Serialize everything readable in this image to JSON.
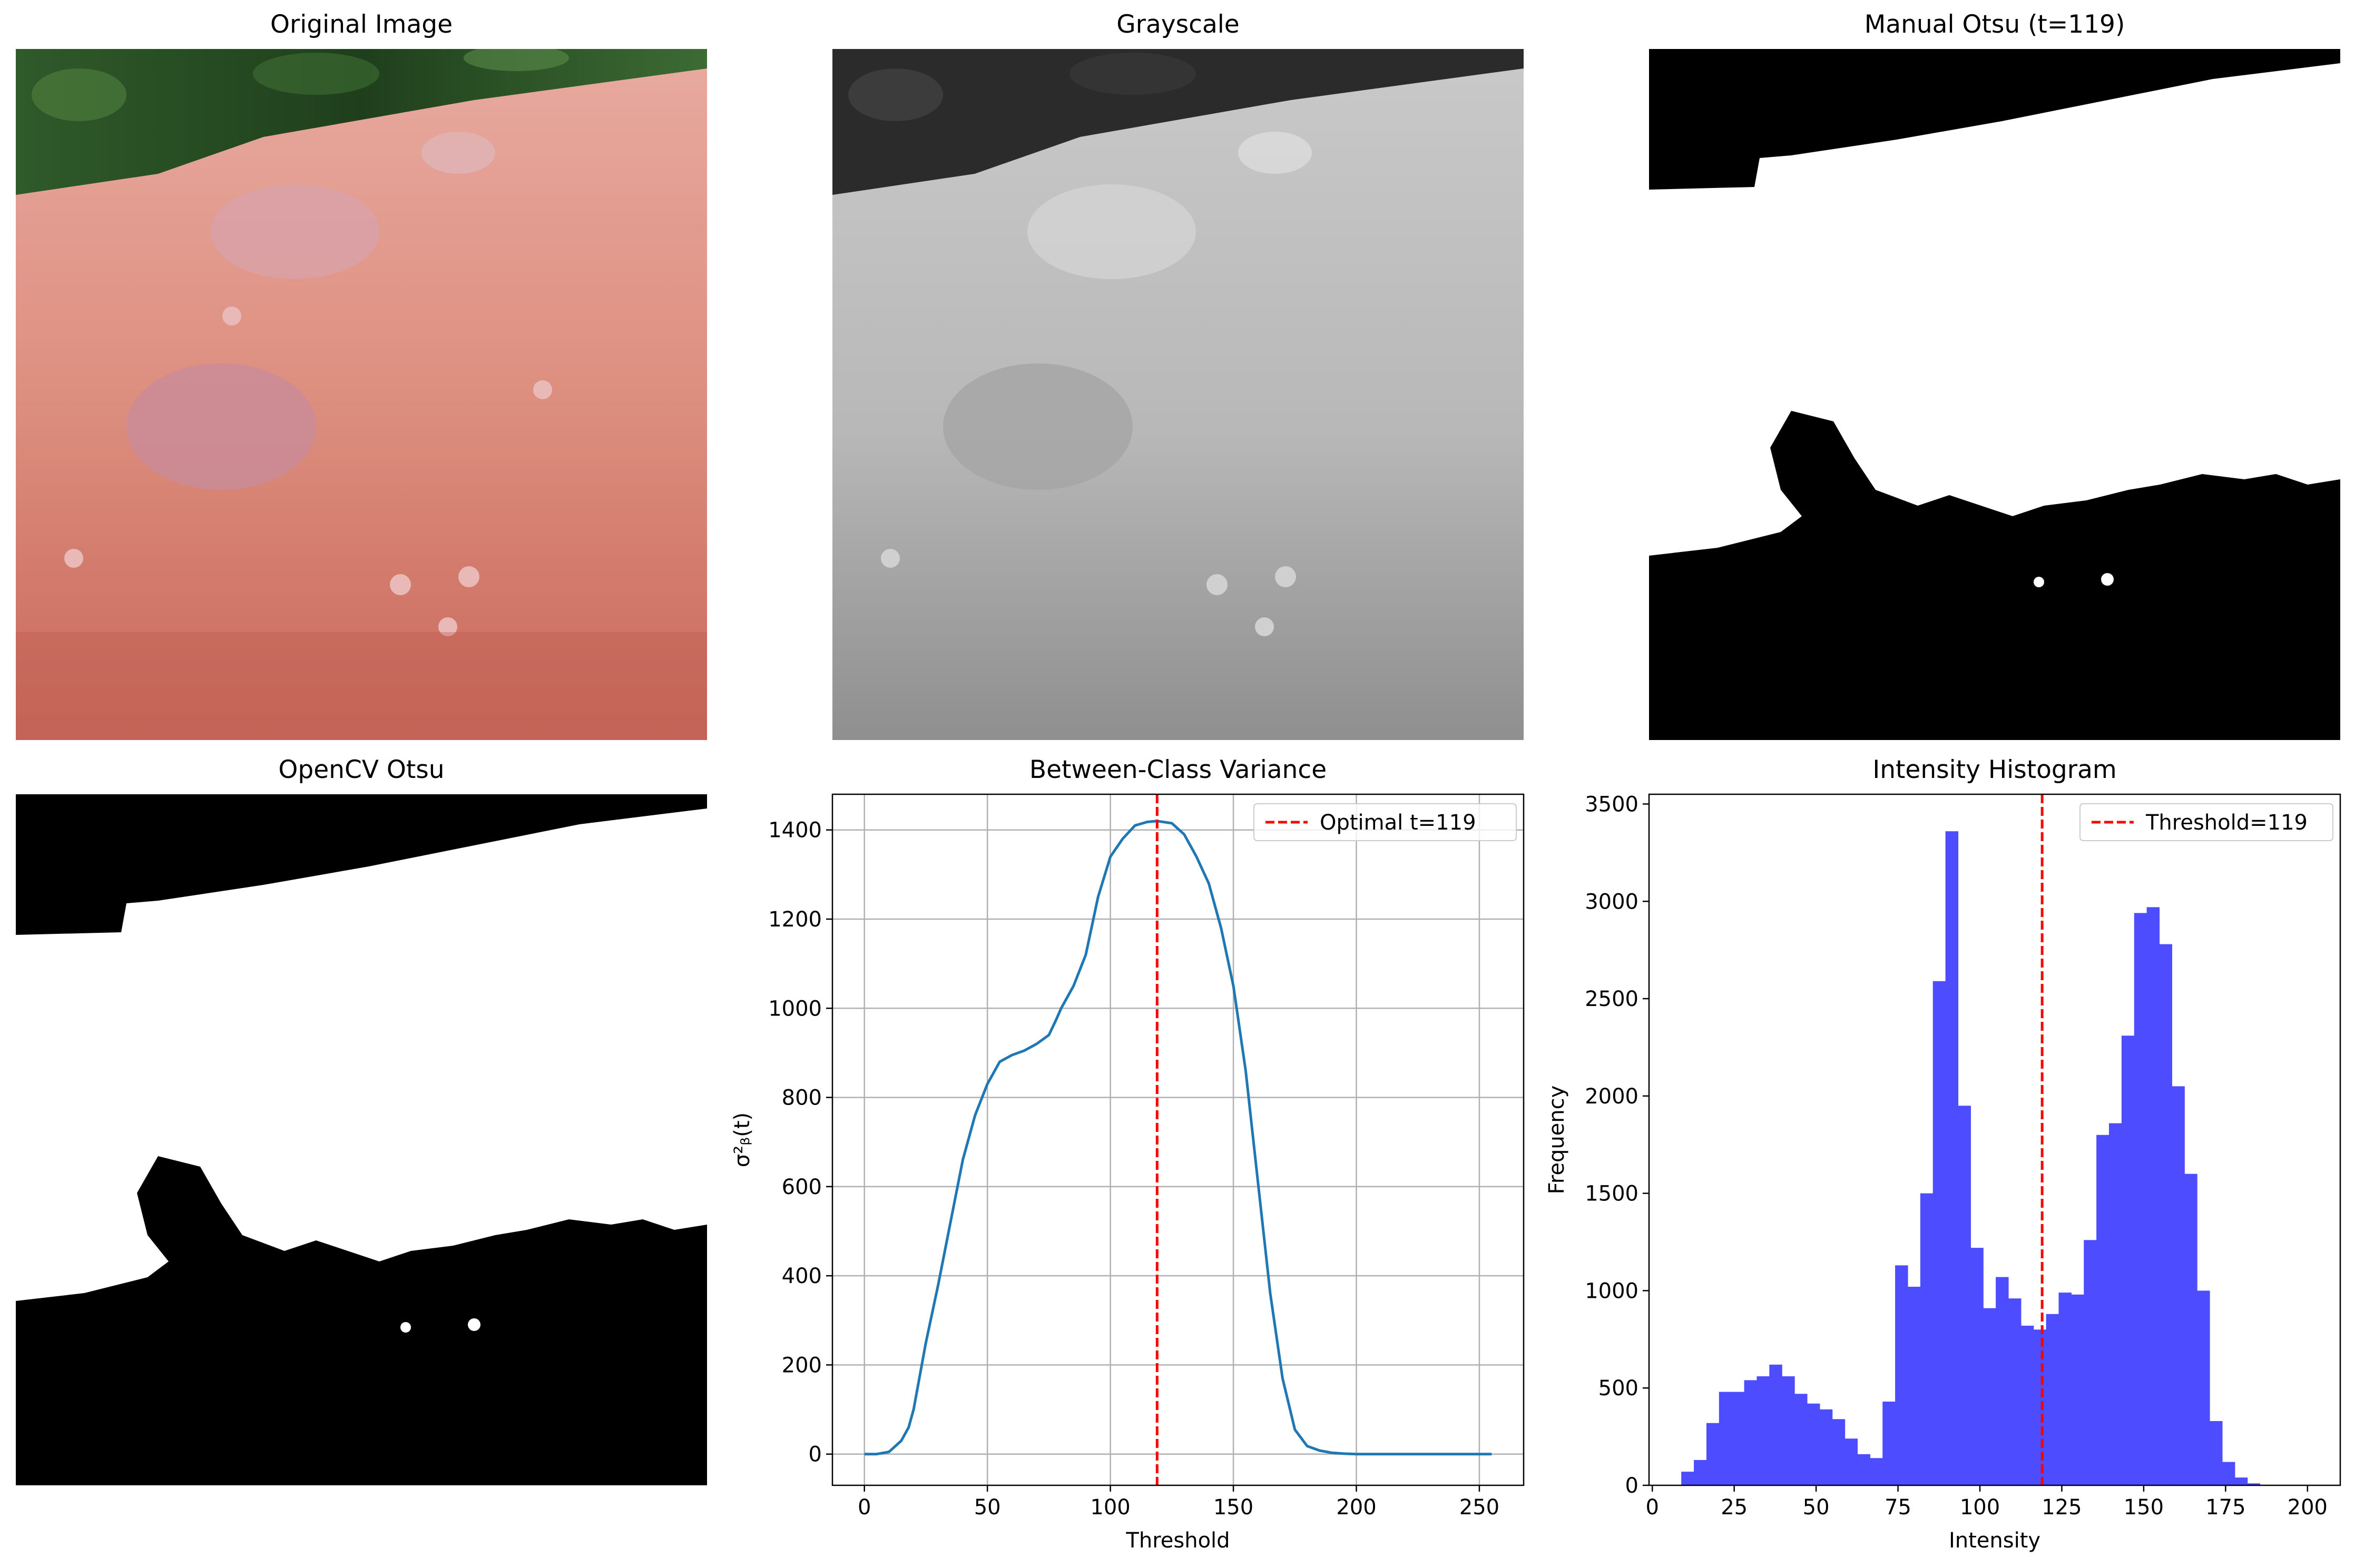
{
  "figure": {
    "panels": [
      {
        "id": "original",
        "title": "Original Image"
      },
      {
        "id": "grayscale",
        "title": "Grayscale"
      },
      {
        "id": "manual-otsu",
        "title": "Manual Otsu (t=119)"
      },
      {
        "id": "opencv-otsu",
        "title": "OpenCV Otsu"
      },
      {
        "id": "variance",
        "title": "Between-Class Variance"
      },
      {
        "id": "histogram",
        "title": "Intensity Histogram"
      }
    ]
  },
  "colors": {
    "variance_line": "#1f77b4",
    "threshold_line": "#ff0000",
    "histogram_bars": "#4d4dff",
    "grid": "#b0b0b0",
    "mask_black": "#000000",
    "mask_white": "#ffffff"
  },
  "chart_data": [
    {
      "panel": "variance",
      "type": "line",
      "title": "Between-Class Variance",
      "xlabel": "Threshold",
      "ylabel": "σ²ᵦ(t)",
      "xlim": [
        -13,
        268
      ],
      "ylim": [
        -70,
        1480
      ],
      "x_ticks": [
        0,
        50,
        100,
        150,
        200,
        250
      ],
      "y_ticks": [
        0,
        200,
        400,
        600,
        800,
        1000,
        1200,
        1400
      ],
      "grid": true,
      "legend_position": "top-right",
      "series": [
        {
          "x": [
            0,
            5,
            10,
            12,
            15,
            18,
            20,
            22,
            25,
            30,
            35,
            40,
            45,
            50,
            55,
            60,
            65,
            70,
            75,
            78,
            80,
            85,
            90,
            95,
            100,
            105,
            110,
            115,
            119,
            125,
            130,
            135,
            140,
            145,
            150,
            155,
            160,
            165,
            170,
            175,
            180,
            185,
            190,
            195,
            200,
            210,
            220,
            230,
            240,
            255
          ],
          "y": [
            0,
            0,
            5,
            15,
            30,
            60,
            100,
            160,
            250,
            380,
            520,
            660,
            760,
            830,
            880,
            895,
            905,
            920,
            940,
            975,
            1000,
            1050,
            1120,
            1250,
            1340,
            1380,
            1410,
            1418,
            1420,
            1415,
            1390,
            1340,
            1280,
            1180,
            1050,
            860,
            610,
            360,
            170,
            55,
            18,
            8,
            3,
            1,
            0,
            0,
            0,
            0,
            0,
            0
          ]
        }
      ],
      "threshold": {
        "x": 119,
        "label": "Optimal t=119"
      }
    },
    {
      "panel": "histogram",
      "type": "bar",
      "title": "Intensity Histogram",
      "xlabel": "Intensity",
      "ylabel": "Frequency",
      "xlim": [
        -1,
        210
      ],
      "ylim": [
        0,
        3550
      ],
      "x_ticks": [
        0,
        25,
        50,
        75,
        100,
        125,
        150,
        175,
        200
      ],
      "y_ticks": [
        0,
        500,
        1000,
        1500,
        2000,
        2500,
        3000,
        3500
      ],
      "bin_start": 5,
      "bin_width": 3.84,
      "values": [
        0,
        70,
        130,
        320,
        480,
        480,
        540,
        560,
        620,
        560,
        470,
        420,
        390,
        340,
        240,
        160,
        140,
        430,
        1130,
        1020,
        1500,
        2590,
        3360,
        1950,
        1220,
        910,
        1070,
        960,
        820,
        800,
        880,
        990,
        980,
        1260,
        1800,
        1860,
        2310,
        2940,
        2970,
        2780,
        2050,
        1600,
        1000,
        330,
        120,
        40,
        10
      ],
      "threshold": {
        "x": 119,
        "label": "Threshold=119"
      }
    }
  ]
}
